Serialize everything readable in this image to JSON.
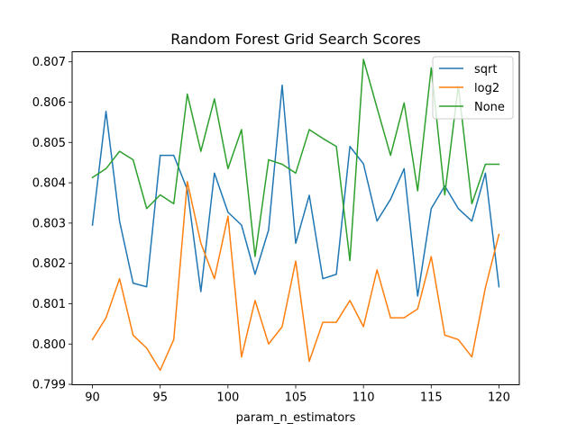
{
  "chart_data": {
    "type": "line",
    "title": "Random Forest Grid Search Scores",
    "xlabel": "param_n_estimators",
    "ylabel": "",
    "xlim": [
      88.5,
      121.5
    ],
    "ylim": [
      0.79899,
      0.80725
    ],
    "grid": false,
    "legend_position": "top-right",
    "x": [
      90,
      91,
      92,
      93,
      94,
      95,
      96,
      97,
      98,
      99,
      100,
      101,
      102,
      103,
      104,
      105,
      106,
      107,
      108,
      109,
      110,
      111,
      112,
      113,
      114,
      115,
      116,
      117,
      118,
      119,
      120
    ],
    "xticks": [
      90,
      95,
      100,
      105,
      110,
      115,
      120
    ],
    "xtick_labels": [
      "90",
      "95",
      "100",
      "105",
      "110",
      "115",
      "120"
    ],
    "yticks": [
      0.799,
      0.8,
      0.801,
      0.802,
      0.803,
      0.804,
      0.805,
      0.806,
      0.807
    ],
    "ytick_labels": [
      "0.799",
      "0.800",
      "0.801",
      "0.802",
      "0.803",
      "0.804",
      "0.805",
      "0.806",
      "0.807"
    ],
    "series": [
      {
        "name": "sqrt",
        "color": "#1f77b4",
        "values": [
          0.80295,
          0.80577,
          0.80305,
          0.80151,
          0.80142,
          0.80468,
          0.80468,
          0.80383,
          0.8013,
          0.80424,
          0.80327,
          0.80295,
          0.80173,
          0.80283,
          0.80642,
          0.8025,
          0.80369,
          0.80162,
          0.80173,
          0.8049,
          0.80447,
          0.80305,
          0.80359,
          0.80435,
          0.80119,
          0.80336,
          0.80392,
          0.80336,
          0.80305,
          0.80424,
          0.80142
        ]
      },
      {
        "name": "log2",
        "color": "#ff7f0e",
        "values": [
          0.80011,
          0.80065,
          0.80162,
          0.80022,
          0.7999,
          0.79935,
          0.80011,
          0.80403,
          0.8025,
          0.80162,
          0.80317,
          0.79968,
          0.80108,
          0.8,
          0.80043,
          0.80206,
          0.79957,
          0.80054,
          0.80054,
          0.80108,
          0.80043,
          0.80184,
          0.80065,
          0.80065,
          0.80087,
          0.80217,
          0.80022,
          0.80011,
          0.79968,
          0.8014,
          0.80272
        ]
      },
      {
        "name": "None",
        "color": "#2ca02c",
        "values": [
          0.80413,
          0.80435,
          0.80478,
          0.80457,
          0.80336,
          0.8037,
          0.80348,
          0.8062,
          0.80478,
          0.80608,
          0.80435,
          0.80532,
          0.80217,
          0.80457,
          0.80446,
          0.80424,
          0.80532,
          0.8051,
          0.8049,
          0.80207,
          0.80706,
          0.80586,
          0.80468,
          0.80598,
          0.8038,
          0.80685,
          0.8037,
          0.8064,
          0.80348,
          0.80446,
          0.80446
        ]
      }
    ]
  }
}
